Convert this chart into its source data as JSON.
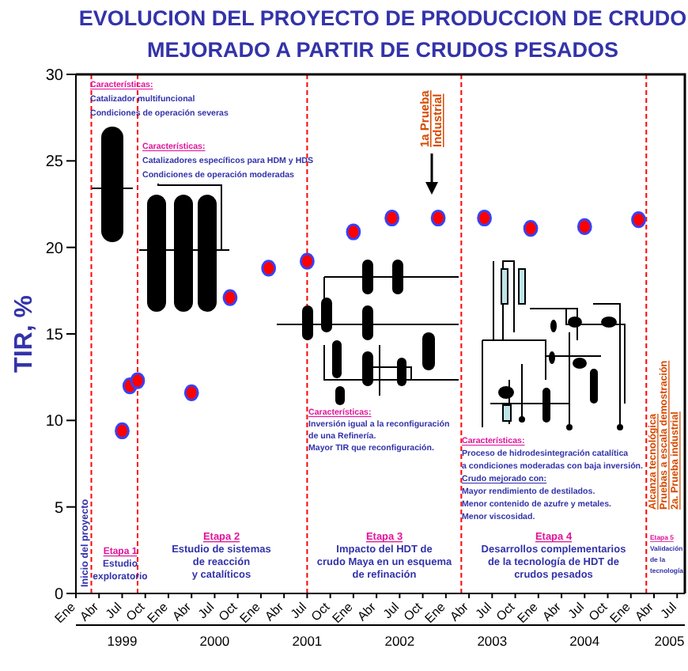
{
  "chart_data": {
    "type": "scatter",
    "title": "EVOLUCION DEL PROYECTO DE PRODUCCION DE CRUDO\nMEJORADO A PARTIR DE CRUDOS PESADOS",
    "ylabel": "TIR, %",
    "x": [
      "1999-07",
      "1999-08",
      "1999-09",
      "2000-04",
      "2000-09",
      "2001-02",
      "2001-07",
      "2002-01",
      "2002-06",
      "2002-12",
      "2003-06",
      "2003-12",
      "2004-07",
      "2005-02"
    ],
    "series": [
      {
        "color": "#ff0000",
        "values": [
          9.4,
          12.0,
          12.3,
          11.6,
          17.1,
          18.8,
          19.2,
          20.9,
          21.7,
          21.7,
          21.7,
          21.1,
          21.2,
          21.6
        ]
      }
    ],
    "marker": "circle",
    "xlim": [
      "1999-01",
      "2005-08"
    ],
    "xticks": [
      {
        "value": "1999-01",
        "label": "Ene"
      },
      {
        "value": "1999-04",
        "label": "Abr"
      },
      {
        "value": "1999-07",
        "label": "Jul"
      },
      {
        "value": "1999-10",
        "label": "Oct"
      },
      {
        "value": "2000-01",
        "label": "Ene"
      },
      {
        "value": "2000-04",
        "label": "Abr"
      },
      {
        "value": "2000-07",
        "label": "Jul"
      },
      {
        "value": "2000-10",
        "label": "Oct"
      },
      {
        "value": "2001-01",
        "label": "Ene"
      },
      {
        "value": "2001-04",
        "label": "Abr"
      },
      {
        "value": "2001-07",
        "label": "Jul"
      },
      {
        "value": "2001-10",
        "label": "Oct"
      },
      {
        "value": "2002-01",
        "label": "Ene"
      },
      {
        "value": "2002-04",
        "label": "Abr"
      },
      {
        "value": "2002-07",
        "label": "Jul"
      },
      {
        "value": "2002-10",
        "label": "Oct"
      },
      {
        "value": "2003-01",
        "label": "Ene"
      },
      {
        "value": "2003-04",
        "label": "Abr"
      },
      {
        "value": "2003-07",
        "label": "Jul"
      },
      {
        "value": "2003-10",
        "label": "Oct"
      },
      {
        "value": "2004-01",
        "label": "Ene"
      },
      {
        "value": "2004-04",
        "label": "Abr"
      },
      {
        "value": "2004-07",
        "label": "Jul"
      },
      {
        "value": "2004-10",
        "label": "Oct"
      },
      {
        "value": "2005-01",
        "label": "Ene"
      },
      {
        "value": "2005-04",
        "label": "Abr"
      },
      {
        "value": "2005-07",
        "label": "Jul"
      }
    ],
    "x2lim": [
      "1999-01",
      "2005-08"
    ],
    "x2ticks": [
      {
        "value": "1999-07",
        "label": "1999"
      },
      {
        "value": "2000-07",
        "label": "2000"
      },
      {
        "value": "2001-07",
        "label": "2001"
      },
      {
        "value": "2002-07",
        "label": "2002"
      },
      {
        "value": "2003-07",
        "label": "2003"
      },
      {
        "value": "2004-07",
        "label": "2004"
      },
      {
        "value": "2005-06",
        "label": "2005"
      }
    ],
    "ylim": [
      0,
      30
    ],
    "yticks": [
      0,
      5,
      10,
      15,
      20,
      25,
      30
    ],
    "ref_lines": [
      {
        "axis": "x",
        "value": "1999-03",
        "label": "Inicio del proyecto",
        "color": "#ff0000",
        "line_style": "dashed"
      },
      {
        "axis": "x",
        "value": "1999-09",
        "color": "#ff0000",
        "line_style": "dashed"
      },
      {
        "axis": "x",
        "value": "2001-07",
        "color": "#ff0000",
        "line_style": "dashed"
      },
      {
        "axis": "x",
        "value": "2003-03",
        "color": "#ff0000",
        "line_style": "dashed"
      },
      {
        "axis": "x",
        "value": "2005-03",
        "label": "Alcanza tecnológica\nPruebas a escala demostración\n2a. Prueba industrial",
        "color": "#ff0000",
        "line_style": "dashed"
      }
    ],
    "annotations": [
      "Características:\nCatalizador multifuncional\nCondiciones de operación severas",
      "Características:\nCatalizadores específicos para HDM y HDS\nCondiciones de operación moderadas",
      "Características:\nInversión igual a la reconfiguración\nde una Refinería.\nMayor TIR que reconfiguración.",
      "Características:\nProceso de hidrodesintegración catalítica\na condiciones moderadas con baja inversión.\nCrudo mejorado con:\nMayor rendimiento de destilados.\nMenor contenido de azufre y metales.\nMenor viscosidad.",
      "Etapa 1\nEstudio\nexploratorio",
      "Etapa 2\nEstudio de sistemas\nde reacción\ny catalíticos",
      "Etapa 3\nImpacto del HDT de\ncrudo Maya en un esquema\nde refinación",
      "Etapa 4\nDesarrollos complementarios\nde la tecnología de HDT de\ncrudos pesados",
      "Etapa 5\nValidación\nde la\ntecnología",
      "1a Prueba\nIndustrial"
    ],
    "tick_labels": "xy"
  }
}
